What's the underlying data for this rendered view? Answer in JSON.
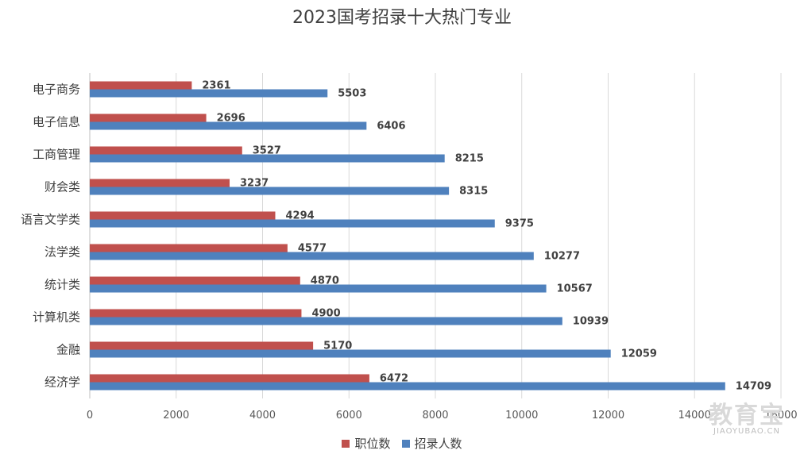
{
  "chart_data": {
    "type": "bar",
    "orientation": "horizontal",
    "title": "2023国考招录十大热门专业",
    "categories": [
      "电子商务",
      "电子信息",
      "工商管理",
      "财会类",
      "语言文学类",
      "法学类",
      "统计类",
      "计算机类",
      "金融",
      "经济学"
    ],
    "series": [
      {
        "name": "职位数",
        "color": "#C0504D",
        "values": [
          2361,
          2696,
          3527,
          3237,
          4294,
          4577,
          4870,
          4900,
          5170,
          6472
        ]
      },
      {
        "name": "招录人数",
        "color": "#4F81BD",
        "values": [
          5503,
          6406,
          8215,
          8315,
          9375,
          10277,
          10567,
          10939,
          12059,
          14709
        ]
      }
    ],
    "xlim": [
      0,
      16000
    ],
    "xticks": [
      "0",
      "2000",
      "4000",
      "6000",
      "8000",
      "10000",
      "12000",
      "14000",
      "16000"
    ],
    "grid": true,
    "legend_position": "bottom"
  },
  "watermark": {
    "main": "教育宝",
    "sub": "JIAOYUBAO.CN"
  }
}
